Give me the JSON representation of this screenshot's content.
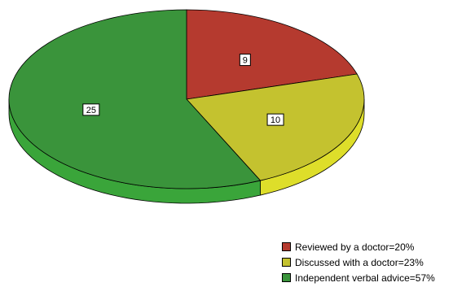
{
  "chart_data": {
    "type": "pie",
    "categories": [
      "Reviewed by a doctor=20%",
      "Discussed with a doctor=23%",
      "Independent verbal advice=57%"
    ],
    "values": [
      9,
      10,
      25
    ],
    "data_labels": [
      "9",
      "10",
      "25"
    ],
    "colors": [
      "#b53a2f",
      "#c4c22f",
      "#3a943b"
    ],
    "side_colors": [
      "#8a2a22",
      "#dede2a",
      "#3aa53a"
    ],
    "style": "3d-tilted",
    "start": "top, clockwise",
    "legend_position": "bottom-right"
  },
  "legend": {
    "items": [
      {
        "label": "Reviewed by a doctor=20%",
        "color": "#b53a2f"
      },
      {
        "label": "Discussed with a doctor=23%",
        "color": "#c4c22f"
      },
      {
        "label": "Independent verbal advice=57%",
        "color": "#3a943b"
      }
    ]
  }
}
